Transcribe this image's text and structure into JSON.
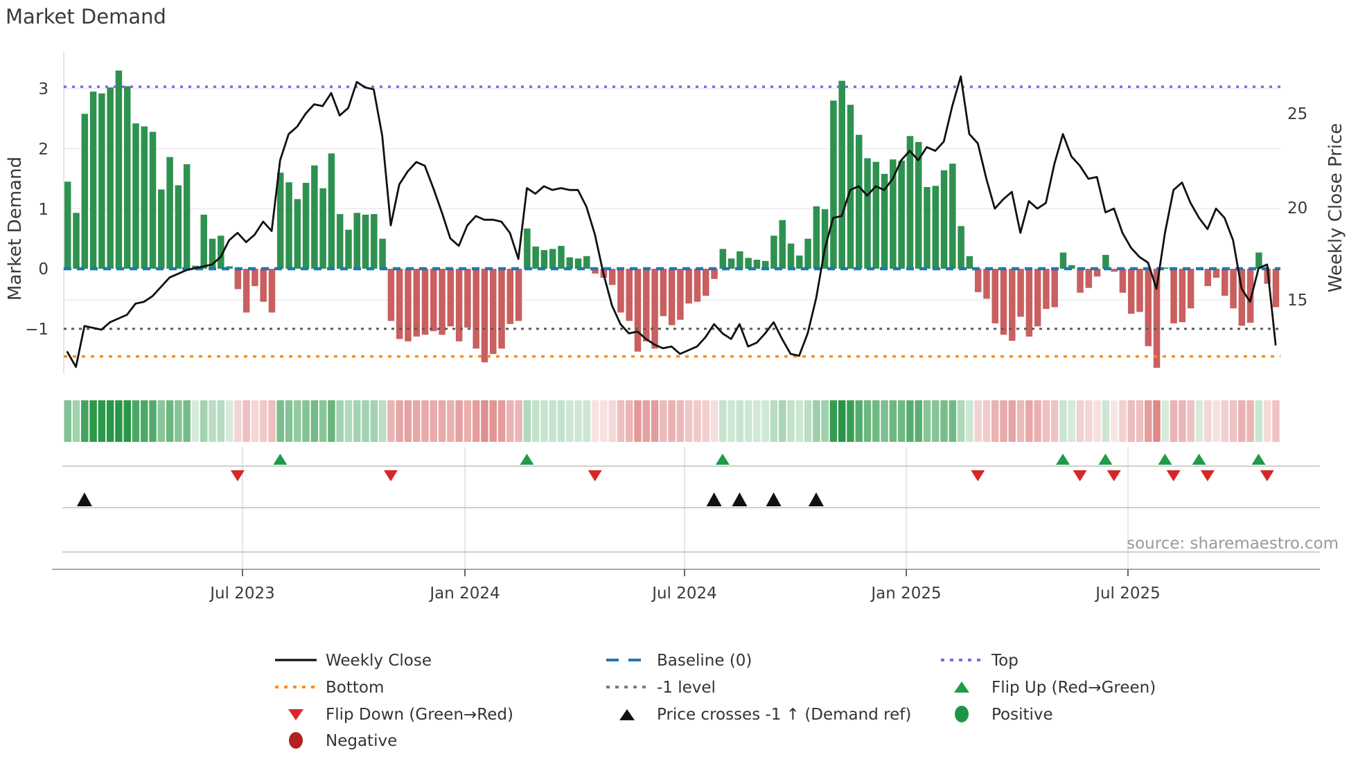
{
  "title": "Market Demand",
  "source_note": "source: sharemaestro.com",
  "axes": {
    "left_label": "Market Demand",
    "right_label": "Weekly Close Price",
    "left_ticks": [
      "3",
      "2",
      "1",
      "0",
      "−1"
    ],
    "right_ticks": [
      "25",
      "20",
      "15"
    ],
    "x_ticks": [
      "Jul 2023",
      "Jan 2024",
      "Jul 2024",
      "Jan 2025",
      "Jul 2025"
    ]
  },
  "legend": {
    "items": [
      {
        "id": "weekly-close",
        "label": "Weekly Close",
        "swatch": "black-line"
      },
      {
        "id": "bottom",
        "label": "Bottom",
        "swatch": "orange-dotted-line"
      },
      {
        "id": "flip-down",
        "label": "Flip Down (Green→Red)",
        "swatch": "red-down-triangle"
      },
      {
        "id": "negative",
        "label": "Negative",
        "swatch": "dark-red-circle"
      },
      {
        "id": "baseline",
        "label": "Baseline (0)",
        "swatch": "blue-dashed-line"
      },
      {
        "id": "minus1-level",
        "label": "-1 level",
        "swatch": "gray-dotted-line"
      },
      {
        "id": "price-cross",
        "label": "Price crosses -1 ↑ (Demand ref)",
        "swatch": "black-up-triangle"
      },
      {
        "id": "top",
        "label": "Top",
        "swatch": "purple-dotted-line"
      },
      {
        "id": "flip-up",
        "label": "Flip Up (Red→Green)",
        "swatch": "green-up-triangle"
      },
      {
        "id": "positive",
        "label": "Positive",
        "swatch": "green-circle"
      }
    ]
  },
  "colors": {
    "green_bar": "#2e9150",
    "red_bar": "#c95f5f",
    "baseline_blue": "#1f77b4",
    "top_purple": "#7b68ee",
    "bottom_orange": "#ff8c00",
    "minus1_gray": "#5a5a5a",
    "price_line": "#111111",
    "flip_up_green": "#1e9c48",
    "flip_down_red": "#d62728",
    "cross_black": "#111111",
    "positive_dot": "#1f9447",
    "negative_dot": "#b22222",
    "grid": "#ececf2",
    "spine": "#8a8a8a",
    "row_line": "#b5b5b5",
    "month_line": "#dcdce4",
    "tick_text": "#3a3a3a",
    "source_text": "#9a9a9a"
  },
  "chart_data": {
    "type": "bar",
    "title": "Market Demand",
    "xlabel": "",
    "ylabel_left": "Market Demand",
    "ylabel_right": "Weekly Close Price",
    "x_tick_labels": [
      "Jul 2023",
      "Jan 2024",
      "Jul 2024",
      "Jan 2025",
      "Jul 2025"
    ],
    "demand_ylim": [
      -1.75,
      3.6
    ],
    "price_ylim": [
      11.1,
      28.3
    ],
    "grid": "horizontal-only",
    "legend_position": "bottom",
    "reference_lines": {
      "top": 3.03,
      "baseline": 0,
      "minus1_level": -1,
      "bottom": -1.46
    },
    "weeks_start": "2023-02",
    "weeks_end": "2025-11",
    "series": [
      {
        "name": "Market Demand",
        "type": "bar",
        "axis": "left",
        "values": [
          1.45,
          0.93,
          2.58,
          2.95,
          2.92,
          3.02,
          3.3,
          3.04,
          2.42,
          2.37,
          2.28,
          1.32,
          1.86,
          1.39,
          1.74,
          0.05,
          0.9,
          0.5,
          0.55,
          0.04,
          -0.34,
          -0.73,
          -0.29,
          -0.55,
          -0.73,
          1.6,
          1.44,
          1.16,
          1.43,
          1.72,
          1.34,
          1.92,
          0.91,
          0.65,
          0.93,
          0.9,
          0.91,
          0.5,
          -0.87,
          -1.17,
          -1.21,
          -1.13,
          -1.1,
          -1.04,
          -1.1,
          -0.96,
          -1.21,
          -0.98,
          -1.33,
          -1.56,
          -1.42,
          -1.33,
          -0.92,
          -0.87,
          0.67,
          0.37,
          0.31,
          0.33,
          0.38,
          0.19,
          0.17,
          0.21,
          -0.08,
          -0.15,
          -0.27,
          -0.73,
          -0.87,
          -1.38,
          -1.21,
          -1.33,
          -0.79,
          -0.94,
          -0.85,
          -0.58,
          -0.55,
          -0.45,
          -0.17,
          0.33,
          0.17,
          0.29,
          0.18,
          0.15,
          0.13,
          0.55,
          0.81,
          0.42,
          0.22,
          0.5,
          1.04,
          0.99,
          2.8,
          3.13,
          2.73,
          2.23,
          1.84,
          1.78,
          1.58,
          1.82,
          1.8,
          2.21,
          2.11,
          1.36,
          1.38,
          1.64,
          1.75,
          0.71,
          0.21,
          -0.39,
          -0.5,
          -0.91,
          -1.1,
          -1.2,
          -0.8,
          -1.13,
          -0.96,
          -0.67,
          -0.64,
          0.27,
          0.06,
          -0.4,
          -0.32,
          -0.13,
          0.23,
          -0.05,
          -0.4,
          -0.75,
          -0.72,
          -1.29,
          -1.65,
          0.02,
          -0.91,
          -0.89,
          -0.66,
          0.02,
          -0.29,
          -0.15,
          -0.45,
          -0.66,
          -0.95,
          -0.9,
          0.27,
          -0.25,
          -0.64
        ]
      },
      {
        "name": "Weekly Close",
        "type": "line",
        "axis": "right",
        "values": [
          12.2,
          11.4,
          13.6,
          13.5,
          13.4,
          13.8,
          14.0,
          14.2,
          14.8,
          14.9,
          15.2,
          15.7,
          16.2,
          16.4,
          16.6,
          16.7,
          16.8,
          16.9,
          17.3,
          18.2,
          18.6,
          18.1,
          18.5,
          19.2,
          18.7,
          22.5,
          23.9,
          24.3,
          25.0,
          25.5,
          25.4,
          26.1,
          24.9,
          25.3,
          26.7,
          26.4,
          26.3,
          23.8,
          19.0,
          21.2,
          21.9,
          22.4,
          22.2,
          21.0,
          19.7,
          18.3,
          17.9,
          19.0,
          19.5,
          19.3,
          19.3,
          19.2,
          18.6,
          17.2,
          21.0,
          20.7,
          21.1,
          20.9,
          21.0,
          20.9,
          20.9,
          20.0,
          18.5,
          16.4,
          14.7,
          13.7,
          13.2,
          13.3,
          12.9,
          12.6,
          12.4,
          12.5,
          12.1,
          12.3,
          12.5,
          13.0,
          13.7,
          13.2,
          12.9,
          13.7,
          12.5,
          12.7,
          13.2,
          13.8,
          12.9,
          12.1,
          12.0,
          13.2,
          15.1,
          17.7,
          19.4,
          19.5,
          20.9,
          21.1,
          20.6,
          21.1,
          20.9,
          21.5,
          22.5,
          23.0,
          22.5,
          23.2,
          23.0,
          23.5,
          25.4,
          27.0,
          23.9,
          23.4,
          21.5,
          19.9,
          20.4,
          20.8,
          18.6,
          20.3,
          19.9,
          20.2,
          22.3,
          23.9,
          22.7,
          22.2,
          21.5,
          21.6,
          19.7,
          19.9,
          18.6,
          17.8,
          17.3,
          17.0,
          15.6,
          18.6,
          20.9,
          21.3,
          20.2,
          19.4,
          18.8,
          19.9,
          19.4,
          18.2,
          15.6,
          14.9,
          16.7,
          16.9,
          12.6
        ]
      }
    ],
    "markers": {
      "flip_up_weeks": [
        25,
        54,
        77,
        117,
        122,
        129,
        133,
        140
      ],
      "flip_down_weeks": [
        20,
        38,
        62,
        107,
        119,
        123,
        130,
        134,
        141
      ],
      "price_cross_up_weeks": [
        2,
        76,
        79,
        83,
        88
      ]
    },
    "heatmap": {
      "description": "weekly demand sign/intensity strip",
      "positive_color": "#2e9150",
      "negative_color": "#ca3c3c"
    }
  }
}
